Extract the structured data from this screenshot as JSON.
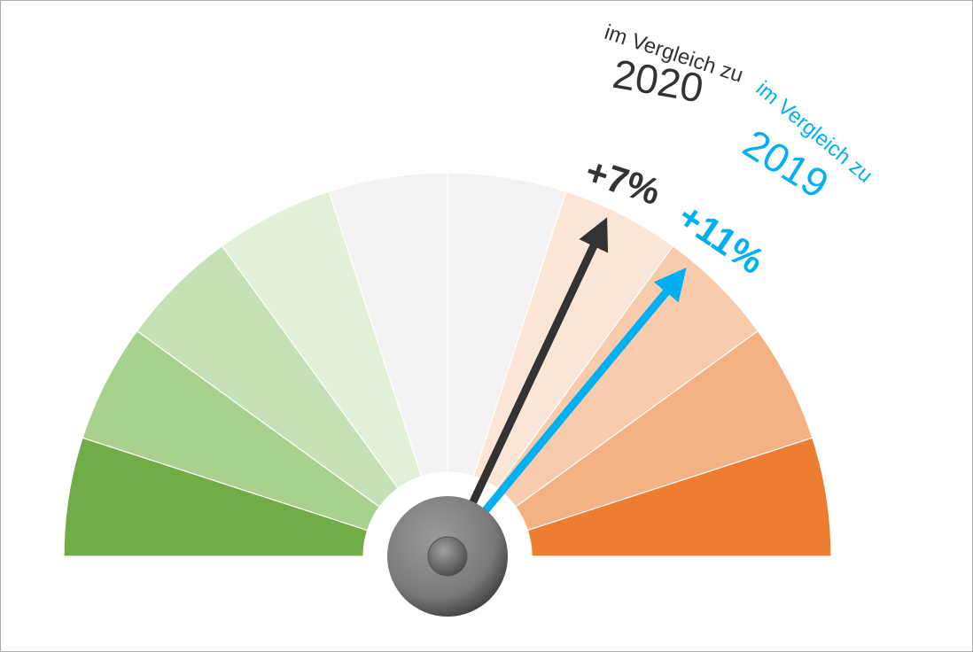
{
  "chart_data": {
    "type": "gauge",
    "ylim": [
      -25,
      25
    ],
    "bands": [
      "#70ad47",
      "#a9d18e",
      "#c5e0b4",
      "#e2f0d9",
      "#f2f2f2",
      "#f2f2f2",
      "#fbe5d6",
      "#f8cbad",
      "#f4b183",
      "#ed7d31"
    ],
    "series": [
      {
        "name": "im Vergleich zu",
        "year": "2020",
        "color": "#333333",
        "values": [
          7
        ],
        "value_labels": [
          "+7%"
        ]
      },
      {
        "name": "im Vergleich zu",
        "year": "2019",
        "color": "#00b0f0",
        "values": [
          11
        ],
        "value_labels": [
          "+11%"
        ]
      }
    ]
  }
}
